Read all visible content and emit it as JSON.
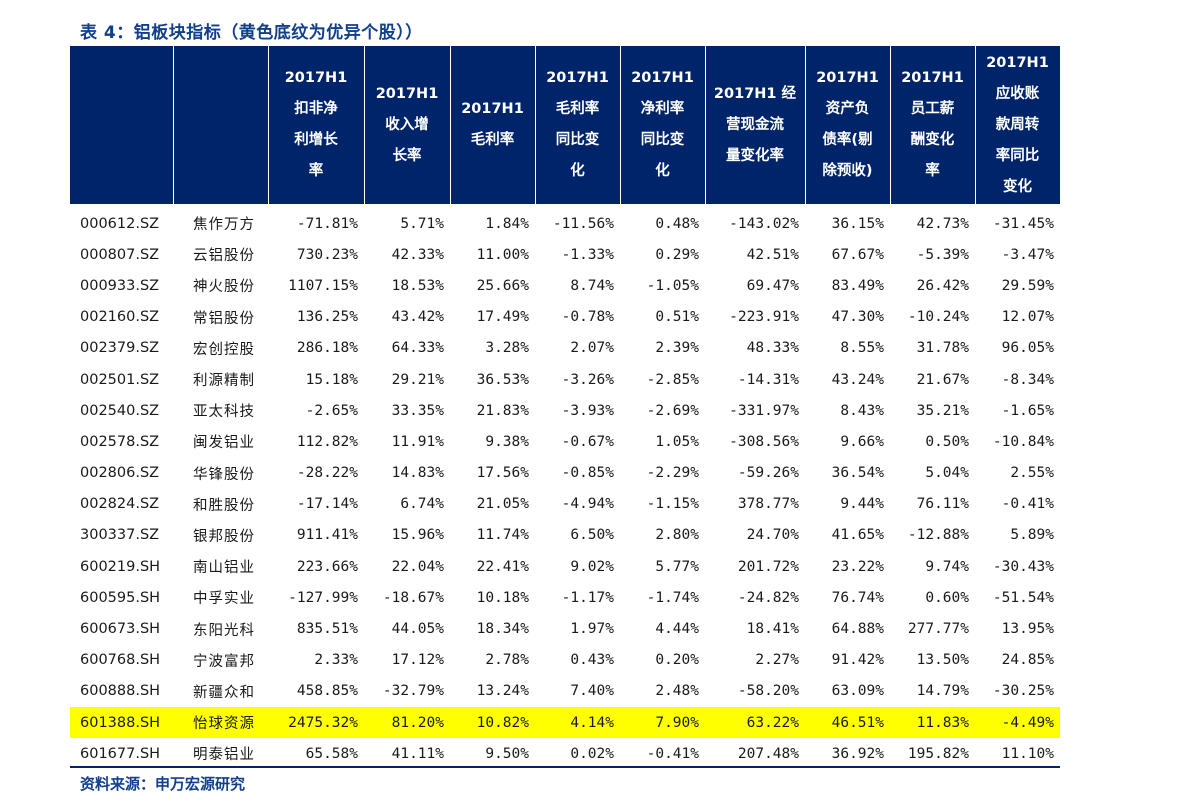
{
  "title": "表 4：铝板块指标（黄色底纹为优异个股））",
  "source": "资料来源：申万宏源研究",
  "colors": {
    "header_bg": "#002469",
    "title": "#123f8c",
    "highlight": "#ffff00"
  },
  "headers": [
    "",
    "",
    "2017H1\n扣非净\n利增长\n率",
    "2017H1\n收入增\n长率",
    "2017H1\n毛利率",
    "2017H1\n毛利率\n同比变\n化",
    "2017H1\n净利率\n同比变\n化",
    "2017H1 经\n营现金流\n量变化率",
    "2017H1\n资产负\n债率(剔\n除预收)",
    "2017H1\n员工薪\n酬变化\n率",
    "2017H1\n应收账\n款周转\n率同比\n变化"
  ],
  "rows": [
    {
      "cells": [
        "000612.SZ",
        "焦作万方",
        "-71.81%",
        "5.71%",
        "1.84%",
        "-11.56%",
        "0.48%",
        "-143.02%",
        "36.15%",
        "42.73%",
        "-31.45%"
      ],
      "highlight": false
    },
    {
      "cells": [
        "000807.SZ",
        "云铝股份",
        "730.23%",
        "42.33%",
        "11.00%",
        "-1.33%",
        "0.29%",
        "42.51%",
        "67.67%",
        "-5.39%",
        "-3.47%"
      ],
      "highlight": false
    },
    {
      "cells": [
        "000933.SZ",
        "神火股份",
        "1107.15%",
        "18.53%",
        "25.66%",
        "8.74%",
        "-1.05%",
        "69.47%",
        "83.49%",
        "26.42%",
        "29.59%"
      ],
      "highlight": false
    },
    {
      "cells": [
        "002160.SZ",
        "常铝股份",
        "136.25%",
        "43.42%",
        "17.49%",
        "-0.78%",
        "0.51%",
        "-223.91%",
        "47.30%",
        "-10.24%",
        "12.07%"
      ],
      "highlight": false
    },
    {
      "cells": [
        "002379.SZ",
        "宏创控股",
        "286.18%",
        "64.33%",
        "3.28%",
        "2.07%",
        "2.39%",
        "48.33%",
        "8.55%",
        "31.78%",
        "96.05%"
      ],
      "highlight": false
    },
    {
      "cells": [
        "002501.SZ",
        "利源精制",
        "15.18%",
        "29.21%",
        "36.53%",
        "-3.26%",
        "-2.85%",
        "-14.31%",
        "43.24%",
        "21.67%",
        "-8.34%"
      ],
      "highlight": false
    },
    {
      "cells": [
        "002540.SZ",
        "亚太科技",
        "-2.65%",
        "33.35%",
        "21.83%",
        "-3.93%",
        "-2.69%",
        "-331.97%",
        "8.43%",
        "35.21%",
        "-1.65%"
      ],
      "highlight": false
    },
    {
      "cells": [
        "002578.SZ",
        "闽发铝业",
        "112.82%",
        "11.91%",
        "9.38%",
        "-0.67%",
        "1.05%",
        "-308.56%",
        "9.66%",
        "0.50%",
        "-10.84%"
      ],
      "highlight": false
    },
    {
      "cells": [
        "002806.SZ",
        "华锋股份",
        "-28.22%",
        "14.83%",
        "17.56%",
        "-0.85%",
        "-2.29%",
        "-59.26%",
        "36.54%",
        "5.04%",
        "2.55%"
      ],
      "highlight": false
    },
    {
      "cells": [
        "002824.SZ",
        "和胜股份",
        "-17.14%",
        "6.74%",
        "21.05%",
        "-4.94%",
        "-1.15%",
        "378.77%",
        "9.44%",
        "76.11%",
        "-0.41%"
      ],
      "highlight": false
    },
    {
      "cells": [
        "300337.SZ",
        "银邦股份",
        "911.41%",
        "15.96%",
        "11.74%",
        "6.50%",
        "2.80%",
        "24.70%",
        "41.65%",
        "-12.88%",
        "5.89%"
      ],
      "highlight": false
    },
    {
      "cells": [
        "600219.SH",
        "南山铝业",
        "223.66%",
        "22.04%",
        "22.41%",
        "9.02%",
        "5.77%",
        "201.72%",
        "23.22%",
        "9.74%",
        "-30.43%"
      ],
      "highlight": false
    },
    {
      "cells": [
        "600595.SH",
        "中孚实业",
        "-127.99%",
        "-18.67%",
        "10.18%",
        "-1.17%",
        "-1.74%",
        "-24.82%",
        "76.74%",
        "0.60%",
        "-51.54%"
      ],
      "highlight": false
    },
    {
      "cells": [
        "600673.SH",
        "东阳光科",
        "835.51%",
        "44.05%",
        "18.34%",
        "1.97%",
        "4.44%",
        "18.41%",
        "64.88%",
        "277.77%",
        "13.95%"
      ],
      "highlight": false
    },
    {
      "cells": [
        "600768.SH",
        "宁波富邦",
        "2.33%",
        "17.12%",
        "2.78%",
        "0.43%",
        "0.20%",
        "2.27%",
        "91.42%",
        "13.50%",
        "24.85%"
      ],
      "highlight": false
    },
    {
      "cells": [
        "600888.SH",
        "新疆众和",
        "458.85%",
        "-32.79%",
        "13.24%",
        "7.40%",
        "2.48%",
        "-58.20%",
        "63.09%",
        "14.79%",
        "-30.25%"
      ],
      "highlight": false
    },
    {
      "cells": [
        "601388.SH",
        "怡球资源",
        "2475.32%",
        "81.20%",
        "10.82%",
        "4.14%",
        "7.90%",
        "63.22%",
        "46.51%",
        "11.83%",
        "-4.49%"
      ],
      "highlight": true
    },
    {
      "cells": [
        "601677.SH",
        "明泰铝业",
        "65.58%",
        "41.11%",
        "9.50%",
        "0.02%",
        "-0.41%",
        "207.48%",
        "36.92%",
        "195.82%",
        "11.10%"
      ],
      "highlight": false
    }
  ]
}
